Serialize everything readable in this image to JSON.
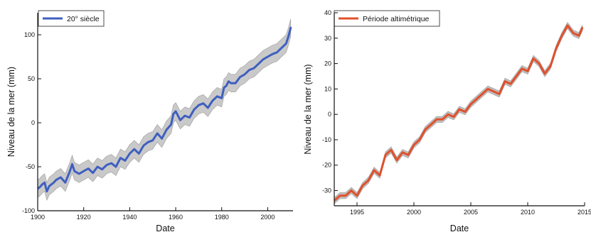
{
  "chart_data": [
    {
      "type": "line",
      "title": "",
      "xlabel": "Date",
      "ylabel": "Niveau de la mer (mm)",
      "xlim": [
        1900,
        2011
      ],
      "ylim": [
        -100,
        125
      ],
      "xticks": [
        1900,
        1920,
        1940,
        1960,
        1980,
        2000
      ],
      "yticks": [
        -100,
        -50,
        0,
        50,
        100
      ],
      "legend_position": "top-left",
      "grid": false,
      "series": [
        {
          "name": "20° siècle",
          "color": "#3f5fbf",
          "band_color": "#c9c9c9",
          "x": [
            1900,
            1901,
            1902,
            1903,
            1904,
            1905,
            1906,
            1907,
            1908,
            1910,
            1912,
            1914,
            1915,
            1916,
            1918,
            1920,
            1922,
            1924,
            1926,
            1928,
            1930,
            1932,
            1934,
            1936,
            1938,
            1940,
            1942,
            1944,
            1946,
            1948,
            1950,
            1952,
            1954,
            1956,
            1958,
            1959,
            1960,
            1962,
            1964,
            1966,
            1968,
            1970,
            1972,
            1974,
            1976,
            1978,
            1980,
            1981,
            1982,
            1983,
            1984,
            1986,
            1988,
            1990,
            1992,
            1994,
            1996,
            1998,
            2000,
            2002,
            2004,
            2006,
            2008,
            2009,
            2010
          ],
          "y": [
            -75,
            -73,
            -70,
            -68,
            -78,
            -72,
            -70,
            -68,
            -65,
            -62,
            -68,
            -55,
            -47,
            -55,
            -58,
            -55,
            -52,
            -57,
            -50,
            -53,
            -48,
            -46,
            -50,
            -40,
            -43,
            -35,
            -30,
            -35,
            -26,
            -22,
            -20,
            -12,
            -18,
            -8,
            -2,
            10,
            13,
            3,
            8,
            6,
            15,
            20,
            22,
            17,
            25,
            30,
            28,
            40,
            42,
            47,
            45,
            45,
            52,
            55,
            60,
            62,
            67,
            72,
            75,
            78,
            80,
            85,
            90,
            98,
            108
          ],
          "band_half_width": 10
        }
      ]
    },
    {
      "type": "line",
      "title": "",
      "xlabel": "Date",
      "ylabel": "Niveau de la mer (mm)",
      "xlim": [
        1993,
        2015
      ],
      "ylim": [
        -36,
        40
      ],
      "xticks": [
        1995,
        2000,
        2005,
        2010,
        2015
      ],
      "xtick_labels": [
        "1995",
        "2000",
        "2005",
        "2010",
        "2015"
      ],
      "yticks": [
        -30,
        -20,
        -10,
        0,
        10,
        20,
        30,
        40
      ],
      "legend_position": "top-left",
      "grid": false,
      "series": [
        {
          "name": "Période altimétrique",
          "color": "#e0502c",
          "band_color": "#bfbfbf",
          "x": [
            1993.0,
            1993.5,
            1994.0,
            1994.5,
            1995.0,
            1995.5,
            1996.0,
            1996.5,
            1997.0,
            1997.5,
            1998.0,
            1998.5,
            1999.0,
            1999.5,
            2000.0,
            2000.5,
            2001.0,
            2001.5,
            2002.0,
            2002.5,
            2003.0,
            2003.5,
            2004.0,
            2004.5,
            2005.0,
            2005.5,
            2006.0,
            2006.5,
            2007.0,
            2007.5,
            2008.0,
            2008.5,
            2009.0,
            2009.5,
            2010.0,
            2010.5,
            2011.0,
            2011.5,
            2012.0,
            2012.5,
            2013.0,
            2013.5,
            2014.0,
            2014.5,
            2014.8
          ],
          "y": [
            -34,
            -32,
            -32,
            -30,
            -32,
            -28,
            -26,
            -22,
            -24,
            -16,
            -14,
            -18,
            -15,
            -16,
            -12,
            -10,
            -6,
            -4,
            -2,
            -2,
            0,
            -1,
            2,
            1,
            4,
            6,
            8,
            10,
            9,
            8,
            13,
            12,
            15,
            18,
            17,
            22,
            20,
            16,
            19,
            26,
            31,
            35,
            32,
            31,
            34
          ],
          "band_half_width": 1.2
        }
      ]
    }
  ]
}
